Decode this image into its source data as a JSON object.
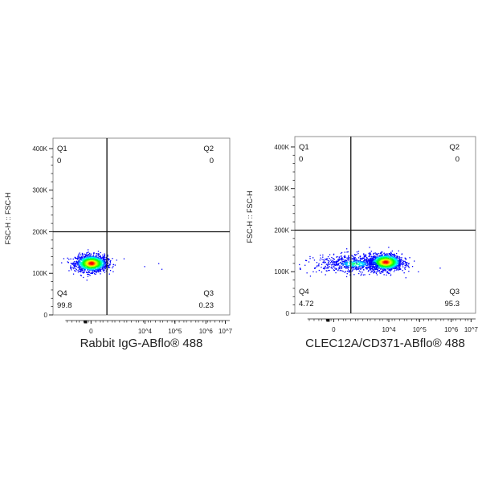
{
  "chart_data": [
    {
      "type": "scatter",
      "subtype": "flow-cytometry density dot plot with quadrant gates",
      "xlabel": "Rabbit IgG-ABflo® 488",
      "ylabel": "FSC-H :: FSC-H",
      "x_scale": "biexponential",
      "x_ticks": [
        "0",
        "10^4",
        "10^5",
        "10^6",
        "10^7"
      ],
      "y_ticks": [
        "0",
        "100K",
        "200K",
        "300K",
        "400K"
      ],
      "ylim": [
        0,
        425000
      ],
      "quadrants": [
        {
          "name": "Q1",
          "value": "0"
        },
        {
          "name": "Q2",
          "value": "0"
        },
        {
          "name": "Q3",
          "value": "0.23"
        },
        {
          "name": "Q4",
          "value": "99.8"
        }
      ],
      "gate_y": 200000,
      "color_scale": [
        "#0000ff",
        "#00ffff",
        "#00ff00",
        "#ffff00",
        "#ff0000"
      ]
    },
    {
      "type": "scatter",
      "subtype": "flow-cytometry density dot plot with quadrant gates",
      "xlabel": "CLEC12A/CD371-ABflo® 488",
      "ylabel": "FSC-H :: FSC-H",
      "x_scale": "biexponential",
      "x_ticks": [
        "0",
        "10^4",
        "10^5",
        "10^6",
        "10^7"
      ],
      "y_ticks": [
        "0",
        "100K",
        "200K",
        "300K",
        "400K"
      ],
      "ylim": [
        0,
        425000
      ],
      "quadrants": [
        {
          "name": "Q1",
          "value": "0"
        },
        {
          "name": "Q2",
          "value": "0"
        },
        {
          "name": "Q3",
          "value": "95.3"
        },
        {
          "name": "Q4",
          "value": "4.72"
        }
      ],
      "gate_y": 200000,
      "color_scale": [
        "#0000ff",
        "#00ffff",
        "#00ff00",
        "#ffff00",
        "#ff0000"
      ]
    }
  ]
}
